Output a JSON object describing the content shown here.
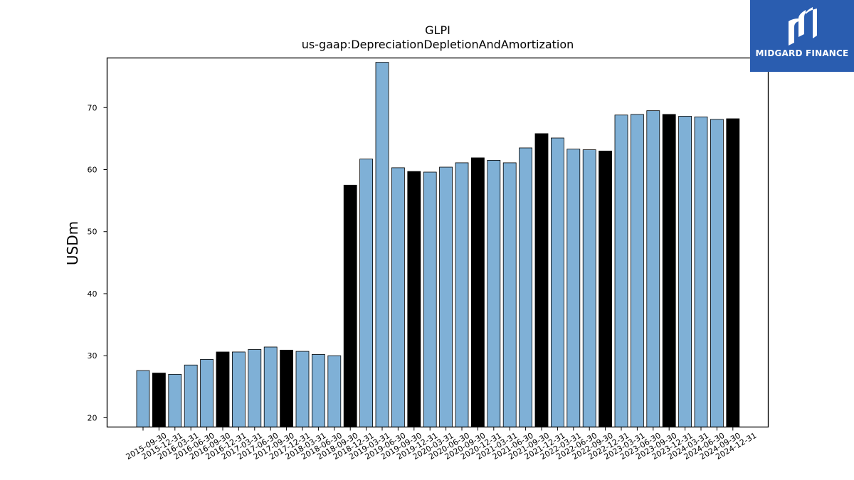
{
  "chart_data": {
    "type": "bar",
    "title": "GLPI",
    "subtitle": "us-gaap:DepreciationDepletionAndAmortization",
    "ylabel": "USDm",
    "xlabel": "",
    "ylim": [
      18.5,
      78
    ],
    "yticks": [
      20,
      30,
      40,
      50,
      60,
      70
    ],
    "grid": false,
    "categories": [
      "2015-09-30",
      "2015-12-31",
      "2016-03-31",
      "2016-06-30",
      "2016-09-30",
      "2016-12-31",
      "2017-03-31",
      "2017-06-30",
      "2017-09-30",
      "2017-12-31",
      "2018-03-31",
      "2018-06-30",
      "2018-09-30",
      "2018-12-31",
      "2019-03-31",
      "2019-06-30",
      "2019-09-30",
      "2019-12-31",
      "2020-03-31",
      "2020-06-30",
      "2020-09-30",
      "2020-12-31",
      "2021-03-31",
      "2021-06-30",
      "2021-09-30",
      "2021-12-31",
      "2022-03-31",
      "2022-06-30",
      "2022-09-30",
      "2022-12-31",
      "2023-03-31",
      "2023-06-30",
      "2023-09-30",
      "2023-12-31",
      "2024-03-31",
      "2024-06-30",
      "2024-09-30",
      "2024-12-31"
    ],
    "values": [
      27.6,
      27.2,
      27.0,
      28.5,
      29.4,
      30.6,
      30.6,
      31.0,
      31.4,
      30.9,
      30.7,
      30.2,
      30.0,
      57.5,
      61.7,
      77.3,
      60.3,
      59.7,
      59.6,
      60.4,
      61.1,
      61.9,
      61.5,
      61.1,
      63.5,
      65.8,
      65.1,
      63.3,
      63.2,
      63.0,
      68.8,
      68.9,
      69.5,
      68.9,
      68.6,
      68.5,
      68.1,
      68.2
    ],
    "annual_flags": [
      false,
      true,
      false,
      false,
      false,
      true,
      false,
      false,
      false,
      true,
      false,
      false,
      false,
      true,
      false,
      false,
      false,
      true,
      false,
      false,
      false,
      true,
      false,
      false,
      false,
      true,
      false,
      false,
      false,
      true,
      false,
      false,
      false,
      true,
      false,
      false,
      false,
      true
    ],
    "colors": {
      "quarter": "#7fb0d6",
      "annual": "#000000",
      "edge": "#000000"
    }
  },
  "logo": {
    "text": "MIDGARD FINANCE",
    "background": "#2a5db0",
    "icon": "midgard-logo-mark"
  }
}
